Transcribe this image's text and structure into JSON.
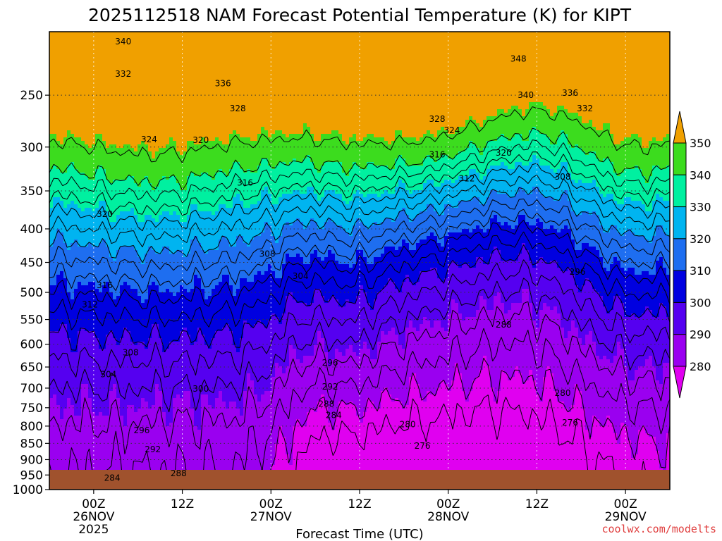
{
  "chart_data": {
    "type": "contour",
    "title": "2025112518 NAM Forecast Potential Temperature (K) for KIPT",
    "xlabel": "Forecast Time (UTC)",
    "ylabel": "",
    "y_axis": {
      "scale": "log-pressure",
      "unit": "hPa",
      "range": [
        1000,
        200
      ],
      "ticks": [
        250,
        300,
        350,
        400,
        450,
        500,
        550,
        600,
        650,
        700,
        750,
        800,
        850,
        900,
        950,
        1000
      ]
    },
    "x_axis": {
      "range_hours": [
        -6,
        78
      ],
      "ticks": [
        {
          "hour": 0,
          "line1": "00Z",
          "line2": "26NOV",
          "line3": "2025"
        },
        {
          "hour": 12,
          "line1": "12Z",
          "line2": "",
          "line3": ""
        },
        {
          "hour": 24,
          "line1": "00Z",
          "line2": "27NOV",
          "line3": ""
        },
        {
          "hour": 36,
          "line1": "12Z",
          "line2": "",
          "line3": ""
        },
        {
          "hour": 48,
          "line1": "00Z",
          "line2": "28NOV",
          "line3": ""
        },
        {
          "hour": 60,
          "line1": "12Z",
          "line2": "",
          "line3": ""
        },
        {
          "hour": 72,
          "line1": "00Z",
          "line2": "29NOV",
          "line3": ""
        }
      ]
    },
    "grid": true,
    "colorbar": {
      "levels": [
        280,
        290,
        300,
        310,
        320,
        330,
        340,
        350
      ],
      "colors": [
        "#9a00f0",
        "#5500f0",
        "#0000e0",
        "#1e6ef0",
        "#00b4f0",
        "#00f0a0",
        "#3cdc1e",
        "#f0f000",
        "#f0a000"
      ],
      "under_color": "#e000f0",
      "over_color": "#f0a000"
    },
    "isentrope_levels": [
      276,
      280,
      284,
      288,
      292,
      296,
      300,
      304,
      308,
      312,
      316,
      320,
      324,
      328,
      332,
      336,
      340,
      348
    ],
    "contour_labels": [
      {
        "text": "340",
        "t": 4,
        "p": 207
      },
      {
        "text": "332",
        "t": 4,
        "p": 232
      },
      {
        "text": "336",
        "t": 17.5,
        "p": 240
      },
      {
        "text": "328",
        "t": 19.5,
        "p": 262
      },
      {
        "text": "324",
        "t": 7.5,
        "p": 292
      },
      {
        "text": "320",
        "t": 14.5,
        "p": 293
      },
      {
        "text": "320",
        "t": 1.5,
        "p": 380
      },
      {
        "text": "316",
        "t": 20.5,
        "p": 340
      },
      {
        "text": "308",
        "t": 23.5,
        "p": 437
      },
      {
        "text": "304",
        "t": 28,
        "p": 472
      },
      {
        "text": "316",
        "t": 1.5,
        "p": 488
      },
      {
        "text": "312",
        "t": -0.5,
        "p": 522
      },
      {
        "text": "308",
        "t": 5,
        "p": 618
      },
      {
        "text": "304",
        "t": 2,
        "p": 667
      },
      {
        "text": "300",
        "t": 14.5,
        "p": 702
      },
      {
        "text": "296",
        "t": 6.5,
        "p": 812
      },
      {
        "text": "292",
        "t": 8,
        "p": 868
      },
      {
        "text": "288",
        "t": 11.5,
        "p": 945
      },
      {
        "text": "284",
        "t": 2.5,
        "p": 960
      },
      {
        "text": "296",
        "t": 32,
        "p": 640
      },
      {
        "text": "292",
        "t": 32,
        "p": 697
      },
      {
        "text": "288",
        "t": 31.5,
        "p": 740
      },
      {
        "text": "284",
        "t": 32.5,
        "p": 770
      },
      {
        "text": "280",
        "t": 42.5,
        "p": 795
      },
      {
        "text": "276",
        "t": 44.5,
        "p": 858
      },
      {
        "text": "328",
        "t": 46.5,
        "p": 272
      },
      {
        "text": "324",
        "t": 48.5,
        "p": 283
      },
      {
        "text": "316",
        "t": 46.5,
        "p": 308
      },
      {
        "text": "312",
        "t": 50.5,
        "p": 335
      },
      {
        "text": "320",
        "t": 55.5,
        "p": 306
      },
      {
        "text": "348",
        "t": 57.5,
        "p": 220
      },
      {
        "text": "340",
        "t": 58.5,
        "p": 250
      },
      {
        "text": "336",
        "t": 64.5,
        "p": 248
      },
      {
        "text": "332",
        "t": 66.5,
        "p": 262
      },
      {
        "text": "308",
        "t": 63.5,
        "p": 333
      },
      {
        "text": "296",
        "t": 65.5,
        "p": 465
      },
      {
        "text": "288",
        "t": 55.5,
        "p": 560
      },
      {
        "text": "280",
        "t": 63.5,
        "p": 712
      },
      {
        "text": "276",
        "t": 64.5,
        "p": 790
      }
    ],
    "credit": "coolwx.com/modelts"
  }
}
